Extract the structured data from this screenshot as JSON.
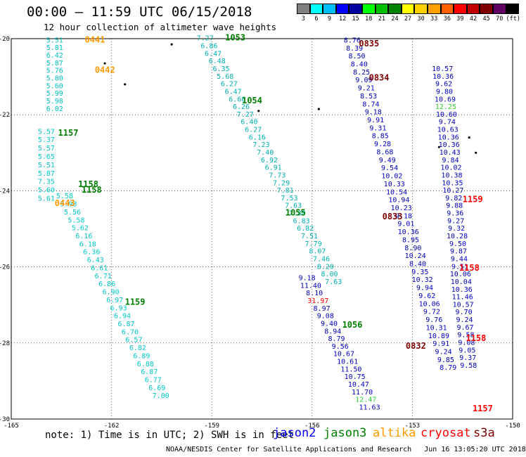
{
  "header": {
    "title": "00:00 – 11:59 UTC 06/15/2018",
    "subtitle": "12 hour collection of altimeter wave heights"
  },
  "colorbar": {
    "labels": [
      "3",
      "6",
      "9",
      "12",
      "15",
      "18",
      "21",
      "24",
      "27",
      "30",
      "33",
      "36",
      "39",
      "42",
      "45",
      "70"
    ],
    "colors": [
      "#808080",
      "#00ffff",
      "#00bfff",
      "#0000ff",
      "#0000a0",
      "#00ff00",
      "#00c000",
      "#008000",
      "#ffff00",
      "#ffd000",
      "#ffa000",
      "#ff6000",
      "#ff0000",
      "#c00000",
      "#800000",
      "#600060",
      "#000000"
    ],
    "unit": "(ft)"
  },
  "map": {
    "lon_range": [
      -165,
      -150
    ],
    "lat_range": [
      -30,
      -20
    ],
    "x_ticks": [
      "-165",
      "-162",
      "-159",
      "-156",
      "-153",
      "-150"
    ],
    "y_ticks": [
      "-20",
      "-22",
      "-24",
      "-26",
      "-28",
      "-30"
    ],
    "grid": true,
    "time_labels": [
      {
        "text": "0441",
        "lon": -162.8,
        "lat": -20.1,
        "color": "#ff9900"
      },
      {
        "text": "0442",
        "lon": -162.5,
        "lat": -20.9,
        "color": "#ff9900"
      },
      {
        "text": "1157",
        "lon": -163.6,
        "lat": -22.55,
        "color": "#008000"
      },
      {
        "text": "1158",
        "lon": -163.0,
        "lat": -23.9,
        "color": "#008000"
      },
      {
        "text": "1158",
        "lon": -162.9,
        "lat": -24.05,
        "color": "#008000"
      },
      {
        "text": "0443",
        "lon": -163.7,
        "lat": -24.4,
        "color": "#ff9900"
      },
      {
        "text": "1159",
        "lon": -161.6,
        "lat": -27.0,
        "color": "#008000"
      },
      {
        "text": "1053",
        "lon": -158.6,
        "lat": -20.05,
        "color": "#008000"
      },
      {
        "text": "1054",
        "lon": -158.1,
        "lat": -21.7,
        "color": "#008000"
      },
      {
        "text": "1055",
        "lon": -156.8,
        "lat": -24.65,
        "color": "#008000"
      },
      {
        "text": "1056",
        "lon": -155.1,
        "lat": -27.6,
        "color": "#008000"
      },
      {
        "text": "0835",
        "lon": -154.6,
        "lat": -20.2,
        "color": "#800000"
      },
      {
        "text": "0834",
        "lon": -154.3,
        "lat": -21.1,
        "color": "#800000"
      },
      {
        "text": "0833",
        "lon": -153.9,
        "lat": -24.75,
        "color": "#800000"
      },
      {
        "text": "0832",
        "lon": -153.2,
        "lat": -28.15,
        "color": "#800000"
      },
      {
        "text": "1159",
        "lon": -151.5,
        "lat": -24.3,
        "color": "#ff0000"
      },
      {
        "text": "1158",
        "lon": -151.6,
        "lat": -26.1,
        "color": "#ff0000"
      },
      {
        "text": "1158",
        "lon": -151.4,
        "lat": -27.95,
        "color": "#ff0000"
      },
      {
        "text": "1157",
        "lon": -151.2,
        "lat": -29.8,
        "color": "#ff0000"
      }
    ],
    "tracks": [
      {
        "name": "altika-pass-0441",
        "color": "#00c0c0",
        "lon_start": -163.7,
        "lon_step": 0.0,
        "lat_start": -20.1,
        "lat_step": -0.2,
        "values": [
          "5.51",
          "5.81",
          "6.42",
          "5.87",
          "5.76",
          "5.80",
          "5.60",
          "5.99",
          "5.98",
          "6.02"
        ]
      },
      {
        "name": "jason3-pass-1157",
        "color": "#00c8c8",
        "lon_start": -163.95,
        "lon_step": 0.0,
        "lat_start": -22.5,
        "lat_step": -0.22,
        "values": [
          "5.57",
          "5.37",
          "5.57",
          "5.65",
          "5.51",
          "5.87",
          "7.35",
          "5.60",
          "5.61"
        ]
      },
      {
        "name": "jason3-pass-1159",
        "color": "#00c8c8",
        "lon_start": -163.4,
        "lon_step": 0.115,
        "lat_start": -24.2,
        "lat_step": -0.21,
        "values": [
          "5.58",
          "5.93",
          "5.56",
          "5.58",
          "5.62",
          "6.16",
          "6.18",
          "6.36",
          "6.43",
          "6.61",
          "6.71",
          "6.86",
          "6.90",
          "6.97",
          "6.93",
          "6.94",
          "6.87",
          "6.70",
          "6.57",
          "6.82",
          "6.89",
          "6.88",
          "6.87",
          "6.77",
          "6.69",
          "7.00"
        ]
      },
      {
        "name": "jason3-pass-1053",
        "color": "#00b0b0",
        "lon_start": -159.2,
        "lon_step": 0.12,
        "lat_start": -20.05,
        "lat_step": -0.2,
        "values": [
          "7.27",
          "6.86",
          "6.47",
          "6.48",
          "6.35",
          "5.68",
          "6.27",
          "6.47",
          "6.60",
          "6.26",
          "7.27",
          "6.40",
          "6.27",
          "6.16",
          "7.23",
          "7.40",
          "6.92",
          "6.91",
          "7.73",
          "7.29",
          "7.81",
          "7.53",
          "7.63",
          "7.80",
          "6.83",
          "6.82",
          "7.51",
          "7.79",
          "8.07",
          "7.46",
          "8.20",
          "8.00",
          "7.63"
        ]
      },
      {
        "name": "jason3-pass-1055",
        "color": "#0000c0",
        "lon_start": -156.15,
        "lon_step": 0.11,
        "lat_start": -26.35,
        "lat_step": -0.2,
        "values": [
          "9.18",
          "11.40",
          "8.10",
          "31.97",
          "8.97",
          "9.08",
          "9.40",
          "8.94",
          "8.79",
          "9.56",
          "10.67",
          "10.61",
          "11.50",
          "10.75",
          "10.47",
          "11.70",
          "12.47",
          "11.63"
        ]
      },
      {
        "name": "cryosat-pass-0835",
        "color": "#0000c0",
        "lon_start": -154.8,
        "lon_step": 0.07,
        "lat_start": -20.1,
        "lat_step": -0.21,
        "values": [
          "8.76",
          "8.39",
          "8.50",
          "8.40",
          "8.25",
          "9.09",
          "9.21",
          "8.53",
          "8.74",
          "9.18",
          "9.91",
          "9.31",
          "8.85",
          "9.28",
          "8.68",
          "9.49",
          "9.54",
          "10.02",
          "10.33",
          "10.54",
          "10.94",
          "10.23",
          "9.18",
          "9.01",
          "10.36",
          "8.95",
          "8.90",
          "10.24",
          "8.40",
          "9.35",
          "10.32",
          "9.94",
          "9.62",
          "10.06",
          "9.72",
          "9.76",
          "10.31",
          "10.89",
          "9.91",
          "9.24",
          "9.85",
          "8.79"
        ]
      },
      {
        "name": "s3a-pass-1159",
        "color": "#0000c0",
        "lon_start": -152.1,
        "lon_step": 0.02,
        "lat_start": -20.85,
        "lat_step": -0.2,
        "values": [
          "10.57",
          "10.36",
          "9.62",
          "9.80",
          "10.69",
          "12.25",
          "10.60",
          "9.74",
          "10.63",
          "10.36",
          "10.36",
          "10.43",
          "9.84",
          "10.02",
          "10.38",
          "10.35",
          "10.27",
          "9.82",
          "9.88",
          "9.36",
          "9.27",
          "9.32",
          "10.28",
          "9.50",
          "9.87",
          "9.44",
          "9.51",
          "10.06",
          "10.04",
          "10.36",
          "11.46",
          "10.57",
          "9.70",
          "9.24",
          "9.67",
          "9.58",
          "9.08",
          "9.05",
          "9.37",
          "9.58"
        ]
      }
    ]
  },
  "footer": {
    "note": "note: 1) Time is in UTC; 2) SWH is in feet",
    "satellites": [
      {
        "name": "jason2",
        "color": "#0000ff",
        "x": 388
      },
      {
        "name": "jason3",
        "color": "#008000",
        "x": 460
      },
      {
        "name": "altika",
        "color": "#ff9900",
        "x": 530
      },
      {
        "name": "cryosat",
        "color": "#ff0000",
        "x": 598
      },
      {
        "name": "s3a",
        "color": "#800000",
        "x": 673
      }
    ],
    "credit": "NOAA/NESDIS Center for Satellite Applications and Research   Jun 16 13:05:20 UTC 2018"
  }
}
